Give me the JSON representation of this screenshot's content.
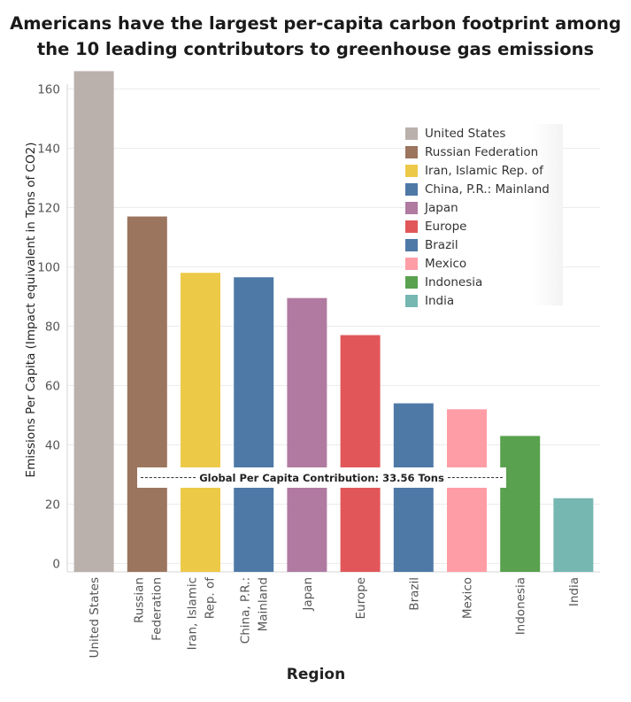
{
  "title_line1": "Americans have the largest per-capita carbon footprint among",
  "title_line2": "the 10 leading contributors to greenhouse gas emissions",
  "chart_data": {
    "type": "bar",
    "title": "Americans have the largest per-capita carbon footprint among the 10 leading contributors to greenhouse gas emissions",
    "xlabel": "Region",
    "ylabel": "Emissions Per Capita (Impact equivalent in Tons of CO2)",
    "ylim": [
      0,
      168
    ],
    "yticks": [
      0,
      20,
      40,
      60,
      80,
      100,
      120,
      140,
      160
    ],
    "grid": true,
    "legend_position": "top-right",
    "categories": [
      "United States",
      "Russian Federation",
      "Iran, Islamic Rep. of",
      "China, P.R.: Mainland",
      "Japan",
      "Europe",
      "Brazil",
      "Mexico",
      "Indonesia",
      "India"
    ],
    "tick_labels": [
      [
        "United States"
      ],
      [
        "Russian",
        "Federation"
      ],
      [
        "Iran, Islamic",
        "Rep. of"
      ],
      [
        "China, P.R.:",
        "Mainland"
      ],
      [
        "Japan"
      ],
      [
        "Europe"
      ],
      [
        "Brazil"
      ],
      [
        "Mexico"
      ],
      [
        "Indonesia"
      ],
      [
        "India"
      ]
    ],
    "values": [
      166,
      117,
      98,
      96.5,
      89.5,
      77,
      54,
      52,
      43,
      22
    ],
    "colors": [
      "#BAB0AC",
      "#9C755F",
      "#EDC948",
      "#4E79A7",
      "#B07AA1",
      "#E15759",
      "#4E79A7",
      "#FF9DA7",
      "#59A14F",
      "#76B7B2"
    ],
    "reference_line": {
      "value": 33.56,
      "label": "Global Per Capita Contribution: 33.56 Tons"
    }
  }
}
